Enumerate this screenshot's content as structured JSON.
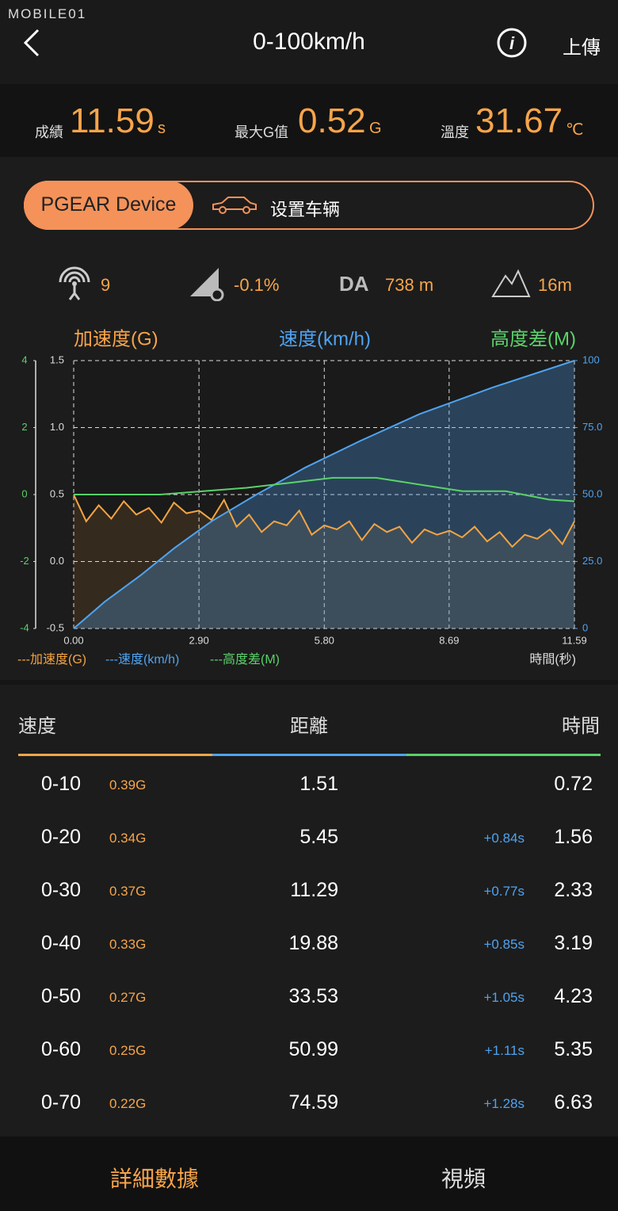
{
  "watermark": "MOBILE01",
  "header": {
    "title": "0-100km/h",
    "upload": "上傳"
  },
  "stats": [
    {
      "label": "成績",
      "value": "11.59",
      "unit": "s"
    },
    {
      "label": "最大G值",
      "value": "0.52",
      "unit": "G"
    },
    {
      "label": "溫度",
      "value": "31.67",
      "unit": "℃"
    }
  ],
  "tabs": {
    "device": "PGEAR Device",
    "vehicle": "设置车辆"
  },
  "indicators": {
    "satellites": "9",
    "slope": "-0.1%",
    "da_label": "DA",
    "da": "738 m",
    "altitude": "16m"
  },
  "chart_data": {
    "type": "line",
    "ylabel": "加速度(G)",
    "y2label": "速度(km/h)",
    "y3label": "高度差(M)",
    "xlabel": "時間(秒)",
    "xlim": [
      0,
      11.59
    ],
    "xticks": [
      {
        "value": 0,
        "label": "0.00"
      },
      {
        "value": 2.9,
        "label": "2.90"
      },
      {
        "value": 5.8,
        "label": "5.80"
      },
      8.69,
      11.59
    ],
    "ylim": [
      -0.5,
      1.5
    ],
    "yticks": [
      -0.5,
      {
        "value": 0,
        "label": "0.0"
      },
      0.5,
      {
        "value": 1,
        "label": "1.0"
      },
      1.5
    ],
    "y2lim": [
      0,
      100
    ],
    "y2ticks": [
      0,
      {
        "value": 25,
        "label": "25.0"
      },
      {
        "value": 50,
        "label": "50.0"
      },
      {
        "value": 75,
        "label": "75.0"
      },
      100
    ],
    "y3lim": [
      -4,
      4
    ],
    "y3ticks": [
      -4,
      -2,
      0,
      2,
      4
    ],
    "grid": true,
    "series": [
      {
        "name": "---加速度(G)",
        "color": "#f5a442",
        "area": true,
        "x": [
          0,
          0.29,
          0.58,
          0.87,
          1.16,
          1.45,
          1.74,
          2.03,
          2.32,
          2.61,
          2.9,
          3.19,
          3.48,
          3.77,
          4.06,
          4.35,
          4.64,
          4.93,
          5.22,
          5.51,
          5.8,
          6.09,
          6.38,
          6.67,
          6.96,
          7.25,
          7.54,
          7.83,
          8.12,
          8.41,
          8.7,
          8.99,
          9.28,
          9.57,
          9.86,
          10.15,
          10.44,
          10.73,
          11.02,
          11.31,
          11.59
        ],
        "values": [
          0.5,
          0.3,
          0.42,
          0.32,
          0.45,
          0.35,
          0.4,
          0.29,
          0.44,
          0.36,
          0.38,
          0.31,
          0.46,
          0.26,
          0.35,
          0.22,
          0.3,
          0.27,
          0.38,
          0.2,
          0.27,
          0.24,
          0.3,
          0.16,
          0.28,
          0.22,
          0.26,
          0.14,
          0.24,
          0.2,
          0.23,
          0.18,
          0.26,
          0.15,
          0.22,
          0.11,
          0.2,
          0.17,
          0.24,
          0.13,
          0.3
        ]
      },
      {
        "name": "---速度(km/h)",
        "color": "#4fa3f0",
        "axis": "y2",
        "area": true,
        "x": [
          0,
          0.72,
          1.56,
          2.33,
          3.19,
          4.23,
          5.35,
          6.63,
          8.0,
          9.7,
          11.59
        ],
        "values": [
          0,
          10,
          20,
          30,
          40,
          50,
          60,
          70,
          80,
          90,
          100
        ]
      },
      {
        "name": "---高度差(M)",
        "color": "#5ad26a",
        "axis": "y3",
        "x": [
          0,
          1,
          2,
          3,
          4,
          5,
          6,
          7,
          8,
          9,
          10,
          11,
          11.59
        ],
        "values": [
          0,
          0,
          0,
          0.1,
          0.2,
          0.35,
          0.5,
          0.5,
          0.3,
          0.1,
          0.1,
          -0.15,
          -0.2
        ]
      }
    ]
  },
  "table": {
    "headers": [
      "速度",
      "距離",
      "時間"
    ],
    "rows": [
      {
        "range": "0-10",
        "g": "0.39G",
        "distance": "1.51",
        "time": "0.72"
      },
      {
        "range": "0-20",
        "g": "0.34G",
        "distance": "5.45",
        "delta": "+0.84s",
        "time": "1.56"
      },
      {
        "range": "0-30",
        "g": "0.37G",
        "distance": "11.29",
        "delta": "+0.77s",
        "time": "2.33"
      },
      {
        "range": "0-40",
        "g": "0.33G",
        "distance": "19.88",
        "delta": "+0.85s",
        "time": "3.19"
      },
      {
        "range": "0-50",
        "g": "0.27G",
        "distance": "33.53",
        "delta": "+1.05s",
        "time": "4.23"
      },
      {
        "range": "0-60",
        "g": "0.25G",
        "distance": "50.99",
        "delta": "+1.11s",
        "time": "5.35"
      },
      {
        "range": "0-70",
        "g": "0.22G",
        "distance": "74.59",
        "delta": "+1.28s",
        "time": "6.63"
      }
    ]
  },
  "footer": {
    "details": "詳細數據",
    "video": "視頻"
  }
}
